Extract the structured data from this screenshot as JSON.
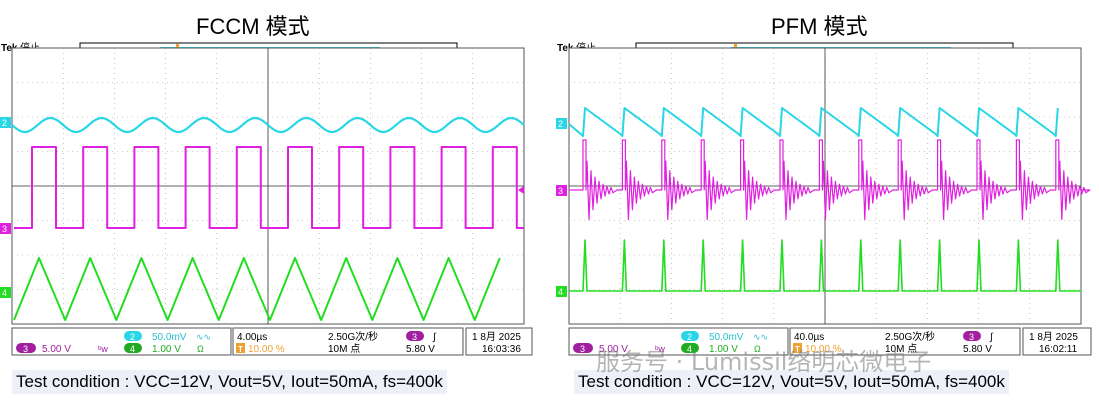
{
  "panels": [
    {
      "title": "FCCM 模式",
      "status": {
        "brand": "Tek",
        "run_state": "停止"
      },
      "channels": {
        "ch2_marker": "2",
        "ch3_marker": "3",
        "ch4_marker": "4",
        "trigger_marker": "T"
      },
      "readout": {
        "ch3_num": "3",
        "ch3_scale": "5.00 V",
        "ch3_bw": "ᵇw",
        "ch2_num": "2",
        "ch2_scale": "50.0mV",
        "ch2_coupling": "∿∿",
        "ch4_num": "4",
        "ch4_scale": "1.00 V",
        "ch4_coupling": "Ω",
        "timebase": "4.00µs",
        "trigger_pos": "10.00 %",
        "sample_rate": "2.50G次/秒",
        "record_length": "10M 点",
        "trig_src": "3",
        "trig_slope": "∫",
        "trig_level": "5.80 V",
        "date": "1 8月 2025",
        "time": "16:03:36"
      },
      "condition": "Test condition : VCC=12V,  Vout=5V,  Iout=50mA,  fs=400k"
    },
    {
      "title": "PFM 模式",
      "status": {
        "brand": "Tek",
        "run_state": "停止"
      },
      "channels": {
        "ch2_marker": "2",
        "ch3_marker": "3",
        "ch4_marker": "4",
        "trigger_marker": "T"
      },
      "readout": {
        "ch3_num": "3",
        "ch3_scale": "5.00 V",
        "ch3_bw": "ᵇw",
        "ch2_num": "2",
        "ch2_scale": "50.0mV",
        "ch2_coupling": "∿∿",
        "ch4_num": "4",
        "ch4_scale": "1.00 V",
        "ch4_coupling": "Ω",
        "timebase": "40.0µs",
        "trigger_pos": "10.00 %",
        "sample_rate": "2.50G次/秒",
        "record_length": "10M 点",
        "trig_src": "3",
        "trig_slope": "∫",
        "trig_level": "5.80 V",
        "date": "1 8月 2025",
        "time": "16:02:11"
      },
      "condition": "Test condition : VCC=12V,  Vout=5V,  Iout=50mA,  fs=400k"
    }
  ],
  "watermark": "服务号 · Lumissil络明芯微电子",
  "colors": {
    "ch2": "#28d6e6",
    "ch3": "#e020e0",
    "ch4": "#22dd22",
    "trigger": "#f0a030",
    "grid": "#9a9a9a"
  }
}
